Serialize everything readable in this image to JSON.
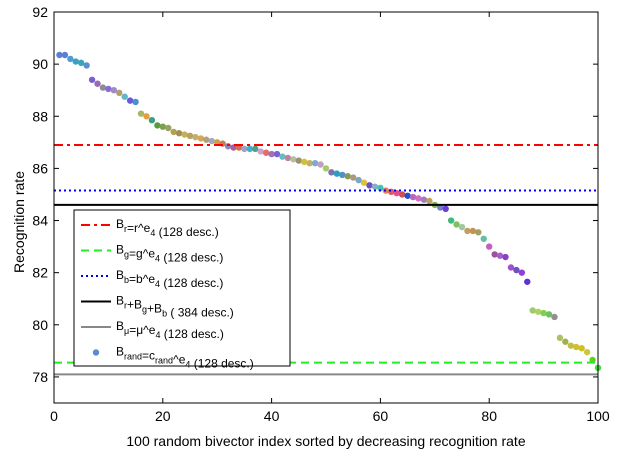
{
  "chart_data": {
    "type": "scatter",
    "xlabel": "100 random bivector index sorted by decreasing recognition rate",
    "ylabel": "Recognition rate",
    "xlim": [
      0,
      100
    ],
    "ylim": [
      77,
      92
    ],
    "x_ticks": [
      0,
      20,
      40,
      60,
      80,
      100
    ],
    "y_ticks": [
      78,
      80,
      82,
      84,
      86,
      88,
      90,
      92
    ],
    "grid": false,
    "legend_position": "bottom-left",
    "reference_lines": [
      {
        "name": "Br",
        "value": 86.9,
        "color": "#ff0000",
        "dash": "dashdot",
        "label": {
          "main": "B",
          "sub": "r",
          "rest": "=r^e",
          "sub2": "4",
          "tail": " (128 desc.)"
        }
      },
      {
        "name": "Bg",
        "value": 78.55,
        "color": "#22ee22",
        "dash": "dashed",
        "label": {
          "main": "B",
          "sub": "g",
          "rest": "=g^e",
          "sub2": "4",
          "tail": " (128 desc.)"
        }
      },
      {
        "name": "Bb",
        "value": 85.15,
        "color": "#0000ee",
        "dash": "dotted",
        "label": {
          "main": "B",
          "sub": "b",
          "rest": "=b^e",
          "sub2": "4",
          "tail": " (128 desc.)"
        }
      },
      {
        "name": "Br+Bg+Bb",
        "value": 84.6,
        "color": "#000000",
        "dash": "solid",
        "label": {
          "main": "B",
          "sub": "r",
          "rest": "+B",
          "sub2": "g",
          "tail": "+B",
          "sub3": "b",
          "tail2": " ( 384 desc.)"
        }
      },
      {
        "name": "Bmu",
        "value": 78.1,
        "color": "#888888",
        "dash": "solid",
        "label": {
          "main": "B",
          "sub": "μ",
          "rest": "=μ^e",
          "sub2": "4",
          "tail": " (128 desc.)"
        }
      }
    ],
    "scatter_label": {
      "main": "B",
      "sub": "rand",
      "rest": "=c",
      "sub2": "rand",
      "tail": "^e",
      "sub3": "4",
      "tail2": " (128 desc.)"
    },
    "scatter_legend_color": "#5a8ad0",
    "points": [
      {
        "x": 1,
        "y": 90.35,
        "c": "#5a7fd6"
      },
      {
        "x": 2,
        "y": 90.35,
        "c": "#5a7fd6"
      },
      {
        "x": 3,
        "y": 90.2,
        "c": "#4a9fcf"
      },
      {
        "x": 4,
        "y": 90.1,
        "c": "#3aa0c8"
      },
      {
        "x": 5,
        "y": 90.05,
        "c": "#3ba5b8"
      },
      {
        "x": 6,
        "y": 89.95,
        "c": "#5c8fd0"
      },
      {
        "x": 7,
        "y": 89.4,
        "c": "#7a5fd0"
      },
      {
        "x": 8,
        "y": 89.25,
        "c": "#9a6ab0"
      },
      {
        "x": 9,
        "y": 89.1,
        "c": "#8a8a9a"
      },
      {
        "x": 10,
        "y": 89.05,
        "c": "#8a6ad5"
      },
      {
        "x": 11,
        "y": 89.0,
        "c": "#a08acc"
      },
      {
        "x": 12,
        "y": 88.9,
        "c": "#b0a070"
      },
      {
        "x": 13,
        "y": 88.75,
        "c": "#5fb7c7"
      },
      {
        "x": 14,
        "y": 88.6,
        "c": "#6a5ad8"
      },
      {
        "x": 15,
        "y": 88.55,
        "c": "#4a90d0"
      },
      {
        "x": 16,
        "y": 88.1,
        "c": "#a8b860"
      },
      {
        "x": 17,
        "y": 88.0,
        "c": "#e0a040"
      },
      {
        "x": 18,
        "y": 87.85,
        "c": "#3aa080"
      },
      {
        "x": 19,
        "y": 87.65,
        "c": "#5a9a40"
      },
      {
        "x": 20,
        "y": 87.6,
        "c": "#7aa050"
      },
      {
        "x": 21,
        "y": 87.55,
        "c": "#9aa060"
      },
      {
        "x": 22,
        "y": 87.4,
        "c": "#b0a050"
      },
      {
        "x": 23,
        "y": 87.35,
        "c": "#a09050"
      },
      {
        "x": 24,
        "y": 87.3,
        "c": "#c0b060"
      },
      {
        "x": 25,
        "y": 87.25,
        "c": "#b8a060"
      },
      {
        "x": 26,
        "y": 87.2,
        "c": "#c0b070"
      },
      {
        "x": 27,
        "y": 87.15,
        "c": "#d0a858"
      },
      {
        "x": 28,
        "y": 87.1,
        "c": "#b0a080"
      },
      {
        "x": 29,
        "y": 87.05,
        "c": "#a0a8c8"
      },
      {
        "x": 30,
        "y": 87.0,
        "c": "#d0a040"
      },
      {
        "x": 31,
        "y": 86.95,
        "c": "#c08060"
      },
      {
        "x": 32,
        "y": 86.85,
        "c": "#8888bb"
      },
      {
        "x": 33,
        "y": 86.8,
        "c": "#b05aa0"
      },
      {
        "x": 34,
        "y": 86.8,
        "c": "#d07050"
      },
      {
        "x": 35,
        "y": 86.75,
        "c": "#a0a0c0"
      },
      {
        "x": 36,
        "y": 86.75,
        "c": "#40b0c8"
      },
      {
        "x": 37,
        "y": 86.75,
        "c": "#50a088"
      },
      {
        "x": 38,
        "y": 86.65,
        "c": "#d0a0d0"
      },
      {
        "x": 39,
        "y": 86.6,
        "c": "#e07060"
      },
      {
        "x": 40,
        "y": 86.55,
        "c": "#a070c0"
      },
      {
        "x": 41,
        "y": 86.55,
        "c": "#7a60d0"
      },
      {
        "x": 42,
        "y": 86.45,
        "c": "#6abac0"
      },
      {
        "x": 43,
        "y": 86.4,
        "c": "#c080a0"
      },
      {
        "x": 44,
        "y": 86.35,
        "c": "#b0c0a0"
      },
      {
        "x": 45,
        "y": 86.3,
        "c": "#a09070"
      },
      {
        "x": 46,
        "y": 86.25,
        "c": "#d0c040"
      },
      {
        "x": 47,
        "y": 86.2,
        "c": "#c0b060"
      },
      {
        "x": 48,
        "y": 86.2,
        "c": "#80a8d0"
      },
      {
        "x": 49,
        "y": 86.15,
        "c": "#c0a0c0"
      },
      {
        "x": 50,
        "y": 86.0,
        "c": "#a8c870"
      },
      {
        "x": 51,
        "y": 85.85,
        "c": "#8070b0"
      },
      {
        "x": 52,
        "y": 85.8,
        "c": "#2aa0c0"
      },
      {
        "x": 53,
        "y": 85.75,
        "c": "#5090c8"
      },
      {
        "x": 54,
        "y": 85.7,
        "c": "#80a050"
      },
      {
        "x": 55,
        "y": 85.65,
        "c": "#b09880"
      },
      {
        "x": 56,
        "y": 85.55,
        "c": "#7aa8c0"
      },
      {
        "x": 57,
        "y": 85.45,
        "c": "#e0c040"
      },
      {
        "x": 58,
        "y": 85.35,
        "c": "#6a50c0"
      },
      {
        "x": 59,
        "y": 85.3,
        "c": "#8ab0c0"
      },
      {
        "x": 60,
        "y": 85.25,
        "c": "#40c0c0"
      },
      {
        "x": 61,
        "y": 85.15,
        "c": "#e08060"
      },
      {
        "x": 62,
        "y": 85.1,
        "c": "#e05a60"
      },
      {
        "x": 63,
        "y": 85.05,
        "c": "#e05090"
      },
      {
        "x": 64,
        "y": 85.0,
        "c": "#d05050"
      },
      {
        "x": 65,
        "y": 84.95,
        "c": "#2050d0"
      },
      {
        "x": 66,
        "y": 84.9,
        "c": "#b06ac0"
      },
      {
        "x": 67,
        "y": 84.85,
        "c": "#d070c0"
      },
      {
        "x": 68,
        "y": 84.8,
        "c": "#9a80c0"
      },
      {
        "x": 69,
        "y": 84.75,
        "c": "#c0a060"
      },
      {
        "x": 70,
        "y": 84.6,
        "c": "#80b050"
      },
      {
        "x": 71,
        "y": 84.5,
        "c": "#7080d0"
      },
      {
        "x": 72,
        "y": 84.45,
        "c": "#6a40d0"
      },
      {
        "x": 73,
        "y": 84.0,
        "c": "#40b880"
      },
      {
        "x": 74,
        "y": 83.85,
        "c": "#80c060"
      },
      {
        "x": 75,
        "y": 83.75,
        "c": "#a0c8a0"
      },
      {
        "x": 76,
        "y": 83.6,
        "c": "#c0a060"
      },
      {
        "x": 77,
        "y": 83.6,
        "c": "#c89058"
      },
      {
        "x": 78,
        "y": 83.55,
        "c": "#a0a060"
      },
      {
        "x": 79,
        "y": 83.3,
        "c": "#60c0a0"
      },
      {
        "x": 80,
        "y": 83.0,
        "c": "#c060c0"
      },
      {
        "x": 81,
        "y": 82.7,
        "c": "#a050a0"
      },
      {
        "x": 82,
        "y": 82.65,
        "c": "#a060c8"
      },
      {
        "x": 83,
        "y": 82.6,
        "c": "#8a40c0"
      },
      {
        "x": 84,
        "y": 82.2,
        "c": "#a050d0"
      },
      {
        "x": 85,
        "y": 82.1,
        "c": "#7050c0"
      },
      {
        "x": 86,
        "y": 82.0,
        "c": "#9040d0"
      },
      {
        "x": 87,
        "y": 81.65,
        "c": "#6030d0"
      },
      {
        "x": 88,
        "y": 80.55,
        "c": "#a0c870"
      },
      {
        "x": 89,
        "y": 80.5,
        "c": "#b0d060"
      },
      {
        "x": 90,
        "y": 80.45,
        "c": "#80d050"
      },
      {
        "x": 91,
        "y": 80.4,
        "c": "#70c060"
      },
      {
        "x": 92,
        "y": 80.3,
        "c": "#909090"
      },
      {
        "x": 93,
        "y": 79.5,
        "c": "#b0c060"
      },
      {
        "x": 94,
        "y": 79.35,
        "c": "#a0b050"
      },
      {
        "x": 95,
        "y": 79.2,
        "c": "#c0c040"
      },
      {
        "x": 96,
        "y": 79.15,
        "c": "#d0c030"
      },
      {
        "x": 97,
        "y": 79.1,
        "c": "#d0c020"
      },
      {
        "x": 98,
        "y": 78.95,
        "c": "#c8c840"
      },
      {
        "x": 99,
        "y": 78.65,
        "c": "#60d020"
      },
      {
        "x": 100,
        "y": 78.35,
        "c": "#40e040"
      }
    ]
  }
}
